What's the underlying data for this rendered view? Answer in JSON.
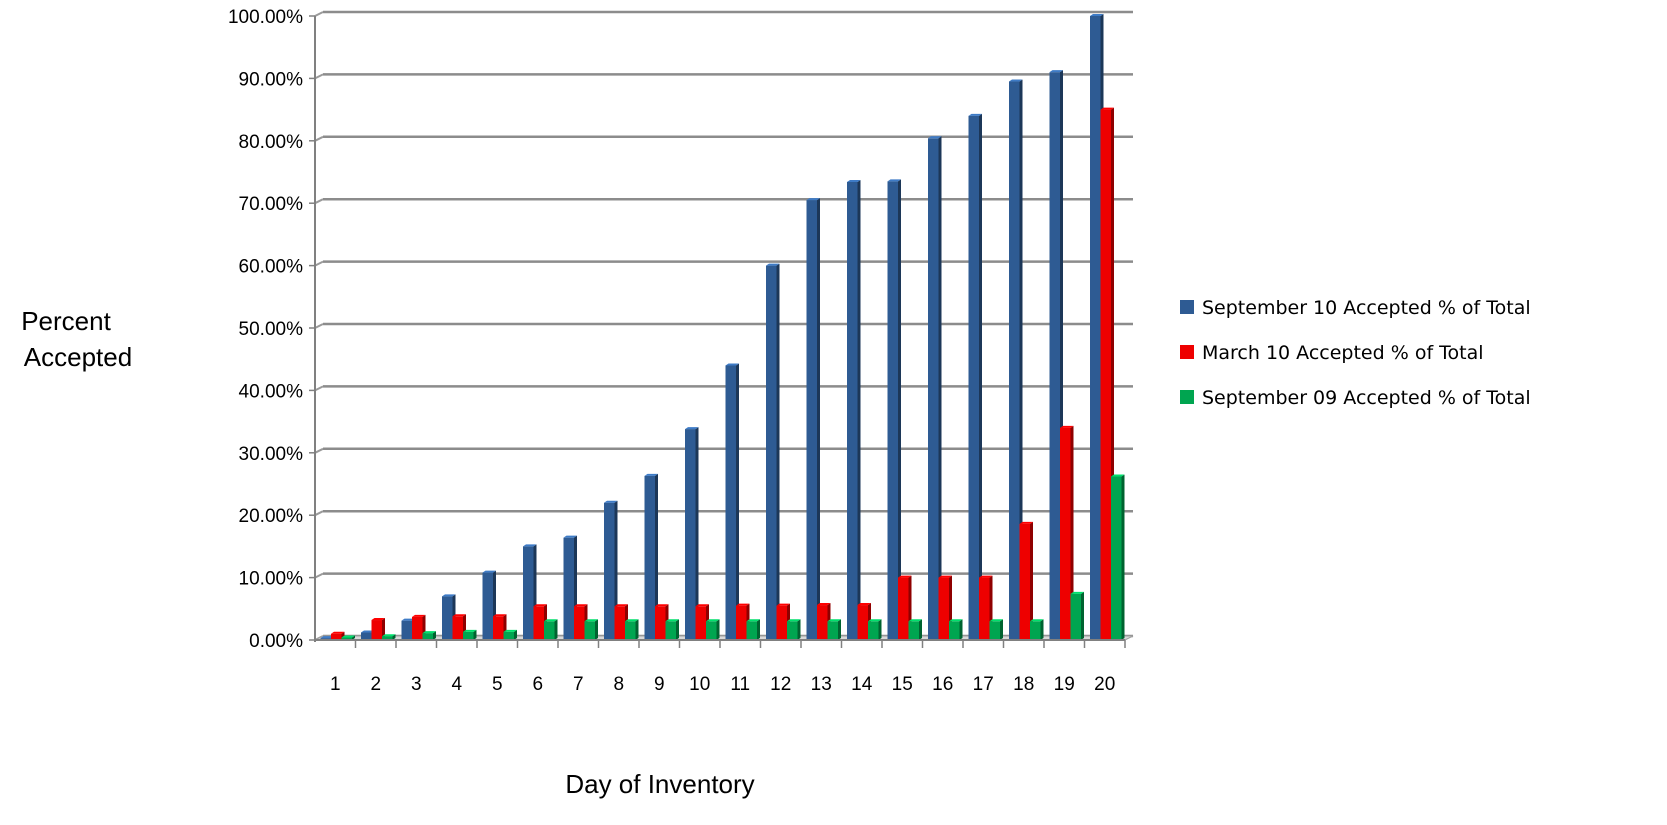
{
  "chart_data": {
    "type": "bar",
    "title": "",
    "xlabel": "Day of Inventory",
    "ylabel_lines": [
      "Percent",
      "Accepted"
    ],
    "categories": [
      "1",
      "2",
      "3",
      "4",
      "5",
      "6",
      "7",
      "8",
      "9",
      "10",
      "11",
      "12",
      "13",
      "14",
      "15",
      "16",
      "17",
      "18",
      "19",
      "20"
    ],
    "y_ticks": [
      "0.00%",
      "10.00%",
      "20.00%",
      "30.00%",
      "40.00%",
      "50.00%",
      "60.00%",
      "70.00%",
      "80.00%",
      "90.00%",
      "100.00%"
    ],
    "ylim": [
      0,
      100
    ],
    "grid": true,
    "legend_position": "right",
    "series": [
      {
        "name": "September 10 Accepted % of Total",
        "color": "#2e5b93",
        "values": [
          0.3,
          1.2,
          3.1,
          7.0,
          10.8,
          15.0,
          16.4,
          22.0,
          26.3,
          33.8,
          44.0,
          60.0,
          70.5,
          73.4,
          73.5,
          80.4,
          84.0,
          89.5,
          91.0,
          100.0
        ]
      },
      {
        "name": "March 10 Accepted % of Total",
        "color": "#ee0000",
        "values": [
          1.0,
          3.2,
          3.7,
          3.8,
          3.8,
          5.4,
          5.4,
          5.4,
          5.4,
          5.4,
          5.5,
          5.5,
          5.6,
          5.6,
          10.0,
          10.0,
          10.0,
          18.6,
          34.0,
          85.0
        ]
      },
      {
        "name": "September 09 Accepted % of Total",
        "color": "#00a550",
        "values": [
          0.4,
          0.6,
          1.1,
          1.3,
          1.3,
          3.0,
          3.0,
          3.0,
          3.0,
          3.0,
          3.0,
          3.0,
          3.0,
          3.0,
          3.0,
          3.0,
          3.0,
          3.0,
          7.4,
          26.2
        ]
      }
    ]
  }
}
